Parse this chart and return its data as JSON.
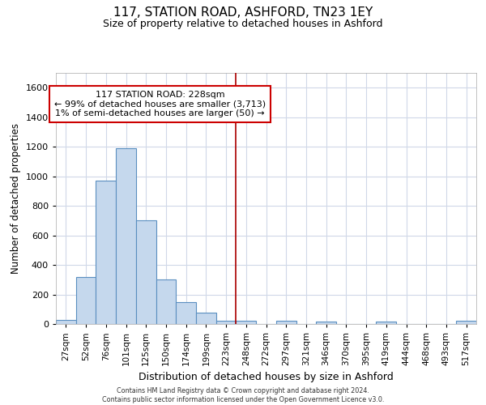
{
  "title": "117, STATION ROAD, ASHFORD, TN23 1EY",
  "subtitle": "Size of property relative to detached houses in Ashford",
  "xlabel": "Distribution of detached houses by size in Ashford",
  "ylabel": "Number of detached properties",
  "categories": [
    "27sqm",
    "52sqm",
    "76sqm",
    "101sqm",
    "125sqm",
    "150sqm",
    "174sqm",
    "199sqm",
    "223sqm",
    "248sqm",
    "272sqm",
    "297sqm",
    "321sqm",
    "346sqm",
    "370sqm",
    "395sqm",
    "419sqm",
    "444sqm",
    "468sqm",
    "493sqm",
    "517sqm"
  ],
  "bar_values": [
    25,
    320,
    970,
    1190,
    700,
    300,
    150,
    75,
    20,
    20,
    0,
    20,
    0,
    15,
    0,
    0,
    15,
    0,
    0,
    0,
    20
  ],
  "bar_color": "#c5d8ed",
  "bar_edge_color": "#5a8fc0",
  "background_color": "#ffffff",
  "grid_color": "#d0d8e8",
  "vline_color": "#aa0000",
  "annotation_text": "117 STATION ROAD: 228sqm\n← 99% of detached houses are smaller (3,713)\n1% of semi-detached houses are larger (50) →",
  "annotation_box_color": "#cc0000",
  "ylim": [
    0,
    1700
  ],
  "yticks": [
    0,
    200,
    400,
    600,
    800,
    1000,
    1200,
    1400,
    1600
  ],
  "footer_line1": "Contains HM Land Registry data © Crown copyright and database right 2024.",
  "footer_line2": "Contains public sector information licensed under the Open Government Licence v3.0."
}
